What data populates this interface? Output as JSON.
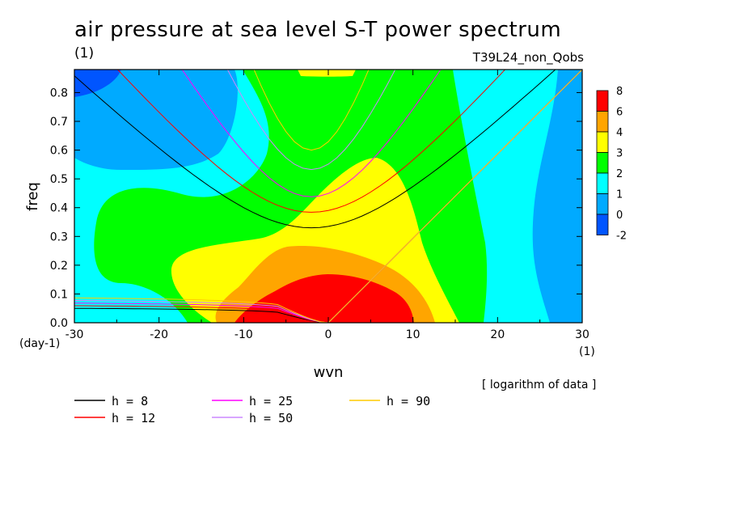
{
  "chart_data": {
    "type": "contour",
    "title": "air pressure at sea level S-T power spectrum",
    "title_unit": "(1)",
    "run_label": "T39L24_non_Qobs",
    "xlabel": "wvn",
    "x_unit": "(1)",
    "ylabel": "freq",
    "y_unit": "(day-1)",
    "note": "[ logarithm of data ]",
    "xlim": [
      -30,
      30
    ],
    "ylim": [
      0,
      0.88
    ],
    "x_ticks": [
      "-30",
      "-20",
      "-10",
      "0",
      "10",
      "20",
      "30"
    ],
    "y_ticks": [
      "0.0",
      "0.1",
      "0.2",
      "0.3",
      "0.4",
      "0.5",
      "0.6",
      "0.7",
      "0.8"
    ],
    "colorbar": {
      "levels": [
        "8",
        "6",
        "4",
        "3",
        "2",
        "1",
        "0",
        "-2"
      ],
      "colors": [
        "#ff0000",
        "#ffa500",
        "#ffff00",
        "#00ff00",
        "#00ffff",
        "#00aaff",
        "#0055ff"
      ]
    },
    "series": [
      {
        "name": "h =  8",
        "color": "#000000"
      },
      {
        "name": "h = 12",
        "color": "#ff0000"
      },
      {
        "name": "h = 25",
        "color": "#ff00ff"
      },
      {
        "name": "h = 50",
        "color": "#cc88ff"
      },
      {
        "name": "h = 90",
        "color": "#ffcc00"
      }
    ]
  },
  "colors": {
    "background": "#ffffff",
    "frame": "#000000"
  }
}
